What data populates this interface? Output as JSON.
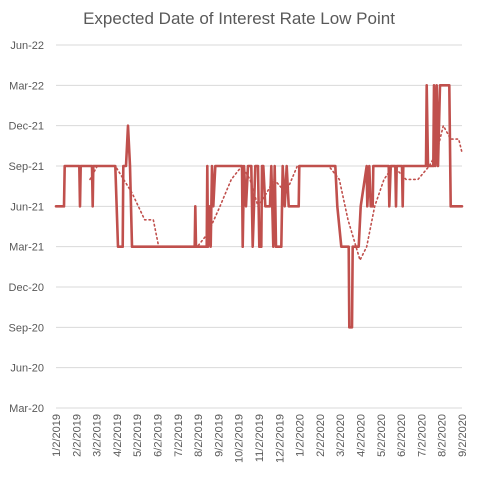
{
  "chart_data": {
    "type": "line",
    "title": "Expected Date of Interest Rate Low Point",
    "xlabel": "",
    "ylabel": "",
    "y_tick_labels": [
      "Jun-22",
      "Mar-22",
      "Dec-21",
      "Sep-21",
      "Jun-21",
      "Mar-21",
      "Dec-20",
      "Sep-20",
      "Jun-20",
      "Mar-20"
    ],
    "y_range": [
      "2020-03",
      "2022-06"
    ],
    "x_tick_labels": [
      "1/2/2019",
      "2/2/2019",
      "3/2/2019",
      "4/2/2019",
      "5/2/2019",
      "6/2/2019",
      "7/2/2019",
      "8/2/2019",
      "9/2/2019",
      "10/2/2019",
      "11/2/2019",
      "12/2/2019",
      "1/2/2020",
      "2/2/2020",
      "3/2/2020",
      "4/2/2020",
      "5/2/2020",
      "6/2/2020",
      "7/2/2020",
      "8/2/2020",
      "9/2/2020"
    ],
    "x_range": [
      "2019-01-02",
      "2020-09-02"
    ],
    "grid": "horizontal",
    "colors": {
      "line": "#c0504d",
      "grid": "#d9d9d9",
      "text": "#595959"
    },
    "series": [
      {
        "style": "solid",
        "points": [
          [
            "2019-01-02",
            "2021-06"
          ],
          [
            "2019-01-14",
            "2021-06"
          ],
          [
            "2019-01-15",
            "2021-09"
          ],
          [
            "2019-02-06",
            "2021-09"
          ],
          [
            "2019-02-07",
            "2021-06"
          ],
          [
            "2019-02-08",
            "2021-09"
          ],
          [
            "2019-02-25",
            "2021-09"
          ],
          [
            "2019-02-26",
            "2021-06"
          ],
          [
            "2019-02-27",
            "2021-09"
          ],
          [
            "2019-04-01",
            "2021-09"
          ],
          [
            "2019-04-05",
            "2021-03"
          ],
          [
            "2019-04-12",
            "2021-03"
          ],
          [
            "2019-04-13",
            "2021-09"
          ],
          [
            "2019-04-17",
            "2021-09"
          ],
          [
            "2019-04-20",
            "2021-12"
          ],
          [
            "2019-04-23",
            "2021-09"
          ],
          [
            "2019-04-26",
            "2021-03"
          ],
          [
            "2019-07-29",
            "2021-03"
          ],
          [
            "2019-07-30",
            "2021-06"
          ],
          [
            "2019-07-31",
            "2021-03"
          ],
          [
            "2019-08-16",
            "2021-03"
          ],
          [
            "2019-08-17",
            "2021-09"
          ],
          [
            "2019-08-18",
            "2021-03"
          ],
          [
            "2019-08-20",
            "2021-06"
          ],
          [
            "2019-08-22",
            "2021-03"
          ],
          [
            "2019-08-24",
            "2021-09"
          ],
          [
            "2019-08-26",
            "2021-06"
          ],
          [
            "2019-08-29",
            "2021-09"
          ],
          [
            "2019-10-08",
            "2021-09"
          ],
          [
            "2019-10-09",
            "2021-03"
          ],
          [
            "2019-10-11",
            "2021-09"
          ],
          [
            "2019-10-14",
            "2021-06"
          ],
          [
            "2019-10-17",
            "2021-09"
          ],
          [
            "2019-10-22",
            "2021-09"
          ],
          [
            "2019-10-24",
            "2021-03"
          ],
          [
            "2019-10-28",
            "2021-09"
          ],
          [
            "2019-11-01",
            "2021-09"
          ],
          [
            "2019-11-03",
            "2021-03"
          ],
          [
            "2019-11-06",
            "2021-03"
          ],
          [
            "2019-11-07",
            "2021-09"
          ],
          [
            "2019-11-09",
            "2021-09"
          ],
          [
            "2019-11-12",
            "2021-06"
          ],
          [
            "2019-11-19",
            "2021-06"
          ],
          [
            "2019-11-21",
            "2021-09"
          ],
          [
            "2019-11-24",
            "2021-03"
          ],
          [
            "2019-11-26",
            "2021-09"
          ],
          [
            "2019-11-28",
            "2021-03"
          ],
          [
            "2019-12-06",
            "2021-03"
          ],
          [
            "2019-12-08",
            "2021-09"
          ],
          [
            "2019-12-11",
            "2021-06"
          ],
          [
            "2019-12-14",
            "2021-09"
          ],
          [
            "2019-12-17",
            "2021-06"
          ],
          [
            "2020-01-01",
            "2021-06"
          ],
          [
            "2020-01-02",
            "2021-09"
          ],
          [
            "2020-02-25",
            "2021-09"
          ],
          [
            "2020-02-28",
            "2021-06"
          ],
          [
            "2020-03-05",
            "2021-03"
          ],
          [
            "2020-03-16",
            "2021-03"
          ],
          [
            "2020-03-17",
            "2020-09"
          ],
          [
            "2020-03-21",
            "2020-09"
          ],
          [
            "2020-03-22",
            "2021-03"
          ],
          [
            "2020-03-31",
            "2021-03"
          ],
          [
            "2020-04-03",
            "2021-06"
          ],
          [
            "2020-04-12",
            "2021-09"
          ],
          [
            "2020-04-13",
            "2021-06"
          ],
          [
            "2020-04-16",
            "2021-09"
          ],
          [
            "2020-04-18",
            "2021-06"
          ],
          [
            "2020-04-21",
            "2021-06"
          ],
          [
            "2020-04-22",
            "2021-09"
          ],
          [
            "2020-05-15",
            "2021-09"
          ],
          [
            "2020-05-16",
            "2021-06"
          ],
          [
            "2020-05-18",
            "2021-09"
          ],
          [
            "2020-05-25",
            "2021-09"
          ],
          [
            "2020-05-26",
            "2021-06"
          ],
          [
            "2020-05-27",
            "2021-09"
          ],
          [
            "2020-06-04",
            "2021-09"
          ],
          [
            "2020-06-05",
            "2021-06"
          ],
          [
            "2020-06-06",
            "2021-09"
          ],
          [
            "2020-07-10",
            "2021-09"
          ],
          [
            "2020-07-11",
            "2022-03"
          ],
          [
            "2020-07-13",
            "2021-09"
          ],
          [
            "2020-07-21",
            "2021-09"
          ],
          [
            "2020-07-22",
            "2022-03"
          ],
          [
            "2020-07-24",
            "2021-09"
          ],
          [
            "2020-07-26",
            "2022-03"
          ],
          [
            "2020-07-28",
            "2021-09"
          ],
          [
            "2020-07-31",
            "2022-03"
          ],
          [
            "2020-08-01",
            "2022-03"
          ],
          [
            "2020-08-09",
            "2022-03"
          ],
          [
            "2020-08-14",
            "2022-03"
          ],
          [
            "2020-08-16",
            "2021-06"
          ],
          [
            "2020-08-28",
            "2021-06"
          ],
          [
            "2020-09-02",
            "2021-06"
          ]
        ]
      },
      {
        "style": "dotted",
        "points": [
          [
            "2019-02-22",
            "2021-08"
          ],
          [
            "2019-03-05",
            "2021-09"
          ],
          [
            "2019-04-01",
            "2021-09"
          ],
          [
            "2019-04-26",
            "2021-07"
          ],
          [
            "2019-05-15",
            "2021-05"
          ],
          [
            "2019-05-28",
            "2021-05"
          ],
          [
            "2019-06-05",
            "2021-03"
          ],
          [
            "2019-07-15",
            "2021-03"
          ],
          [
            "2019-08-02",
            "2021-03"
          ],
          [
            "2019-08-18",
            "2021-04"
          ],
          [
            "2019-09-05",
            "2021-06"
          ],
          [
            "2019-09-22",
            "2021-08"
          ],
          [
            "2019-10-08",
            "2021-09"
          ],
          [
            "2019-10-20",
            "2021-08"
          ],
          [
            "2019-11-01",
            "2021-06"
          ],
          [
            "2019-11-14",
            "2021-07"
          ],
          [
            "2019-11-25",
            "2021-08"
          ],
          [
            "2019-12-13",
            "2021-07"
          ],
          [
            "2019-12-30",
            "2021-09"
          ],
          [
            "2020-01-20",
            "2021-09"
          ],
          [
            "2020-02-15",
            "2021-09"
          ],
          [
            "2020-03-02",
            "2021-08"
          ],
          [
            "2020-03-15",
            "2021-05"
          ],
          [
            "2020-04-02",
            "2021-02"
          ],
          [
            "2020-04-12",
            "2021-03"
          ],
          [
            "2020-04-24",
            "2021-06"
          ],
          [
            "2020-05-08",
            "2021-08"
          ],
          [
            "2020-05-22",
            "2021-09"
          ],
          [
            "2020-06-10",
            "2021-08"
          ],
          [
            "2020-06-28",
            "2021-08"
          ],
          [
            "2020-07-15",
            "2021-09"
          ],
          [
            "2020-07-26",
            "2021-10"
          ],
          [
            "2020-08-05",
            "2021-12"
          ],
          [
            "2020-08-16",
            "2021-11"
          ],
          [
            "2020-08-28",
            "2021-11"
          ],
          [
            "2020-09-02",
            "2021-10"
          ]
        ]
      }
    ]
  }
}
